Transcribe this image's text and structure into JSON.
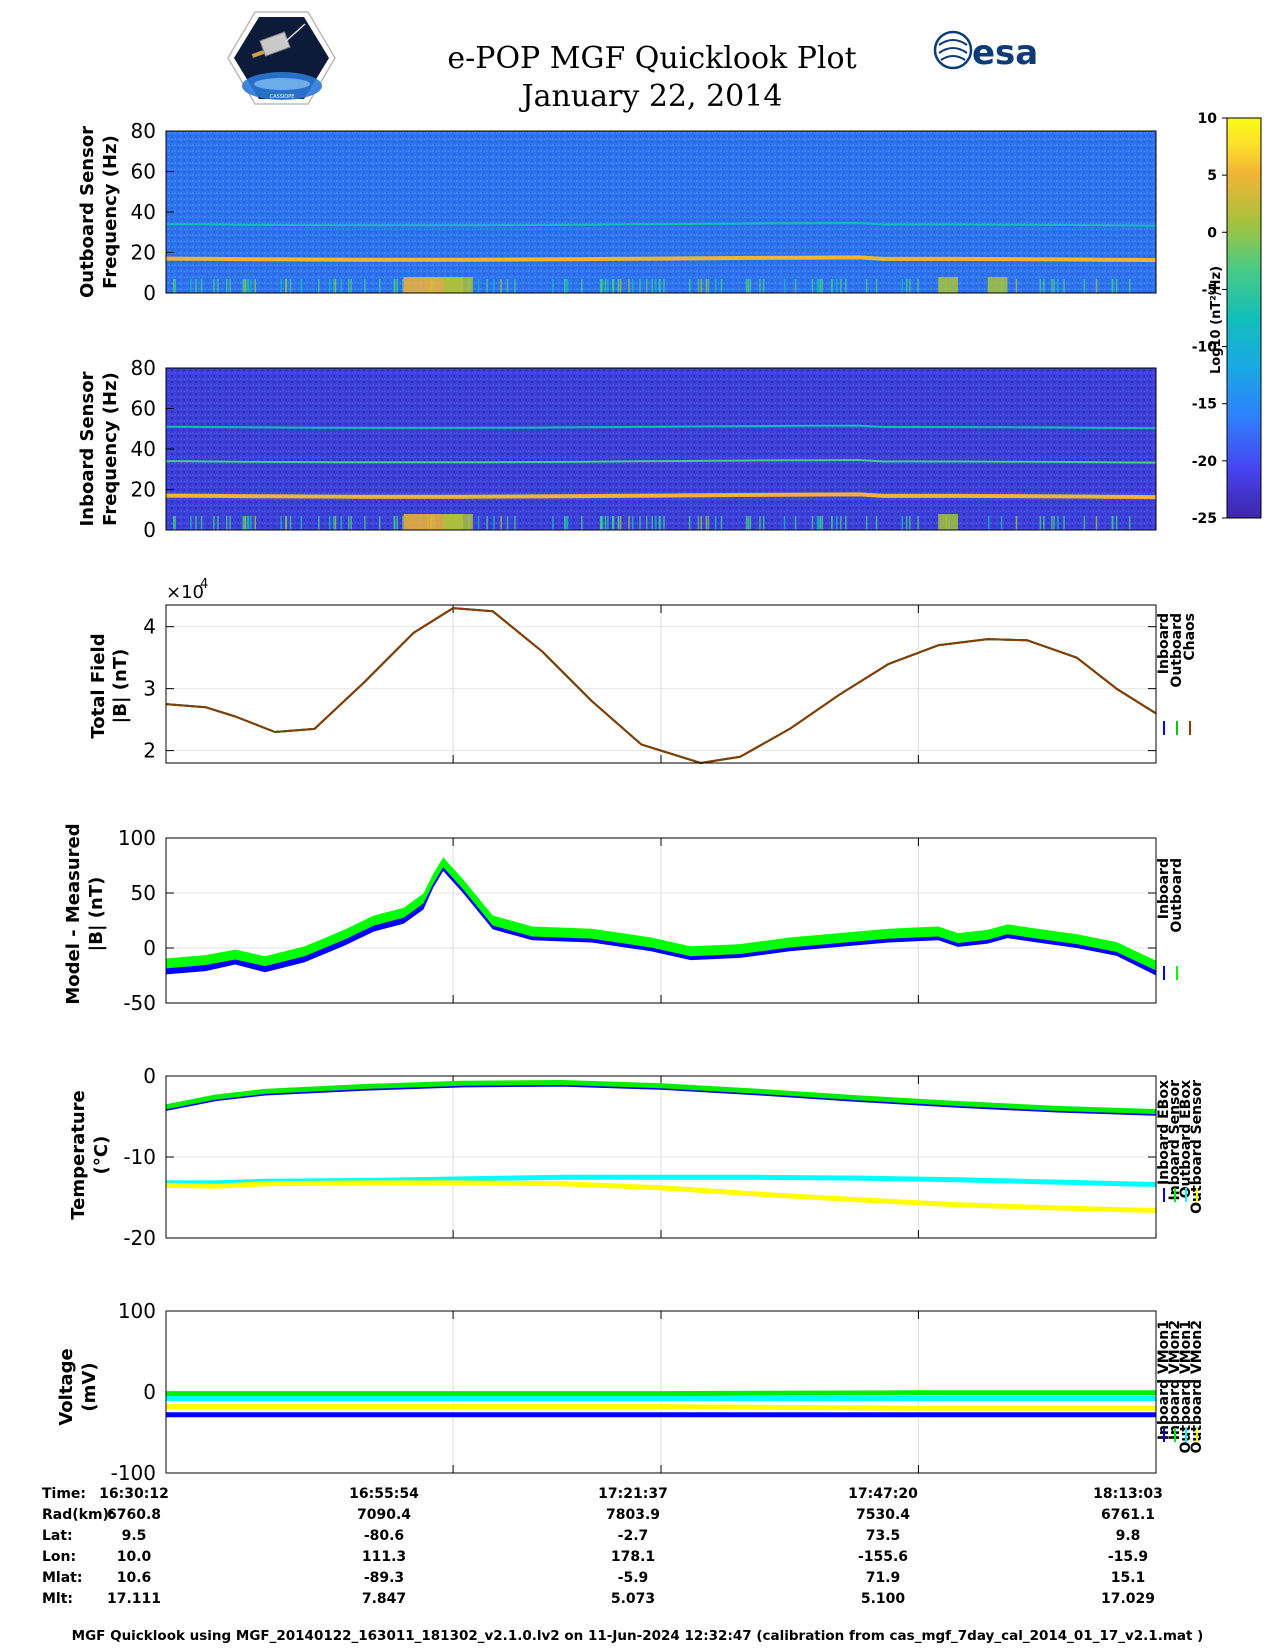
{
  "header": {
    "title": "e-POP MGF Quicklook Plot",
    "date": "January 22, 2014",
    "logo_left_text": "CASSIOPE",
    "logo_right_text": "esa"
  },
  "colorbar": {
    "label": "Log10 (nT²/Hz)",
    "ticks": [
      10,
      5,
      0,
      -5,
      -10,
      -15,
      -20,
      -25
    ],
    "range": [
      -25,
      10
    ],
    "colormap": [
      "#3e26a8",
      "#4743f0",
      "#2f7ffd",
      "#18a9e3",
      "#12bfb8",
      "#48cb85",
      "#a6c23c",
      "#f2b434",
      "#fde32a",
      "#f9fb15"
    ]
  },
  "chart_data": [
    {
      "type": "heatmap",
      "id": "outboard-spectrogram",
      "ylabel_line1": "Outboard Sensor",
      "ylabel_line2": "Frequency (Hz)",
      "ylim": [
        0,
        80
      ],
      "yticks": [
        0,
        20,
        40,
        60,
        80
      ],
      "background_level": -17,
      "spectral_lines_hz": [
        17,
        34
      ],
      "line_levels": [
        2,
        -8
      ],
      "bursts": [
        {
          "x": 0.24,
          "width": 0.06,
          "level": 3
        },
        {
          "x": 0.28,
          "width": 0.03,
          "level": 0
        },
        {
          "x": 0.78,
          "width": 0.02,
          "level": -2
        },
        {
          "x": 0.83,
          "width": 0.02,
          "level": -2
        }
      ]
    },
    {
      "type": "heatmap",
      "id": "inboard-spectrogram",
      "ylabel_line1": "Inboard Sensor",
      "ylabel_line2": "Frequency (Hz)",
      "ylim": [
        0,
        80
      ],
      "yticks": [
        0,
        20,
        40,
        60,
        80
      ],
      "background_level": -22,
      "spectral_lines_hz": [
        17,
        34,
        51
      ],
      "line_levels": [
        3,
        -7,
        -11
      ],
      "bursts": [
        {
          "x": 0.24,
          "width": 0.06,
          "level": 3
        },
        {
          "x": 0.28,
          "width": 0.03,
          "level": 0
        },
        {
          "x": 0.78,
          "width": 0.02,
          "level": -2
        }
      ]
    },
    {
      "type": "line",
      "id": "total-field",
      "ylabel_line1": "Total Field",
      "ylabel_line2": "|B| (nT)",
      "exponent_label": "×10",
      "exponent_power": "4",
      "ylim": [
        1.8,
        4.35
      ],
      "yticks": [
        2,
        3,
        4
      ],
      "legend": [
        "Inboard",
        "Outboard",
        "Chaos"
      ],
      "series": [
        {
          "name": "Inboard",
          "color": "#0000ff",
          "x": [
            0,
            0.04,
            0.07,
            0.11,
            0.15,
            0.2,
            0.25,
            0.29,
            0.33,
            0.38,
            0.43,
            0.48,
            0.54,
            0.58,
            0.63,
            0.68,
            0.73,
            0.78,
            0.83,
            0.87,
            0.92,
            0.96,
            1.0
          ],
          "y": [
            2.75,
            2.7,
            2.55,
            2.3,
            2.35,
            3.1,
            3.9,
            4.3,
            4.25,
            3.6,
            2.8,
            2.1,
            1.8,
            1.9,
            2.35,
            2.9,
            3.4,
            3.7,
            3.8,
            3.78,
            3.5,
            3.0,
            2.6
          ]
        },
        {
          "name": "Outboard",
          "color": "#00cc00",
          "x": [
            0,
            0.04,
            0.07,
            0.11,
            0.15,
            0.2,
            0.25,
            0.29,
            0.33,
            0.38,
            0.43,
            0.48,
            0.54,
            0.58,
            0.63,
            0.68,
            0.73,
            0.78,
            0.83,
            0.87,
            0.92,
            0.96,
            1.0
          ],
          "y": [
            2.75,
            2.7,
            2.55,
            2.3,
            2.35,
            3.1,
            3.9,
            4.3,
            4.25,
            3.6,
            2.8,
            2.1,
            1.8,
            1.9,
            2.35,
            2.9,
            3.4,
            3.7,
            3.8,
            3.78,
            3.5,
            3.0,
            2.6
          ]
        },
        {
          "name": "Chaos",
          "color": "#8b3a00",
          "x": [
            0,
            0.04,
            0.07,
            0.11,
            0.15,
            0.2,
            0.25,
            0.29,
            0.33,
            0.38,
            0.43,
            0.48,
            0.54,
            0.58,
            0.63,
            0.68,
            0.73,
            0.78,
            0.83,
            0.87,
            0.92,
            0.96,
            1.0
          ],
          "y": [
            2.75,
            2.7,
            2.55,
            2.3,
            2.35,
            3.1,
            3.9,
            4.3,
            4.25,
            3.6,
            2.8,
            2.1,
            1.8,
            1.9,
            2.35,
            2.9,
            3.4,
            3.7,
            3.8,
            3.78,
            3.5,
            3.0,
            2.6
          ]
        }
      ]
    },
    {
      "type": "area",
      "id": "model-minus-measured",
      "ylabel_line1": "Model - Measured",
      "ylabel_line2": "|B| (nT)",
      "ylim": [
        -50,
        100
      ],
      "yticks": [
        -50,
        0,
        50,
        100
      ],
      "legend": [
        "Inboard",
        "Outboard"
      ],
      "x": [
        0,
        0.04,
        0.07,
        0.1,
        0.14,
        0.18,
        0.21,
        0.24,
        0.26,
        0.27,
        0.28,
        0.3,
        0.33,
        0.37,
        0.43,
        0.49,
        0.53,
        0.58,
        0.63,
        0.68,
        0.73,
        0.78,
        0.8,
        0.83,
        0.85,
        0.88,
        0.92,
        0.96,
        1.0
      ],
      "series": [
        {
          "name": "Inboard",
          "color": "#0000ff",
          "y": [
            -19,
            -16,
            -10,
            -17,
            -8,
            7,
            20,
            27,
            40,
            60,
            75,
            55,
            22,
            12,
            10,
            2,
            -6,
            -4,
            2,
            6,
            10,
            12,
            6,
            9,
            14,
            10,
            5,
            -2,
            -20
          ],
          "band": 10
        },
        {
          "name": "Outboard",
          "color": "#00ff00",
          "y": [
            -14,
            -11,
            -6,
            -12,
            -3,
            12,
            25,
            32,
            45,
            63,
            78,
            58,
            25,
            15,
            13,
            5,
            -3,
            -1,
            5,
            9,
            13,
            15,
            9,
            12,
            17,
            13,
            8,
            1,
            -16
          ],
          "band": 9
        }
      ]
    },
    {
      "type": "line",
      "id": "temperature",
      "ylabel_line1": "Temperature",
      "ylabel_line2": "(°C)",
      "ylim": [
        -20,
        0
      ],
      "yticks": [
        -20,
        -10,
        0
      ],
      "legend": [
        "Inboard EBox",
        "Inboard Sensor",
        "Outboard EBox",
        "Outboard Sensor"
      ],
      "x": [
        0,
        0.05,
        0.1,
        0.2,
        0.3,
        0.4,
        0.5,
        0.6,
        0.7,
        0.8,
        0.9,
        1.0
      ],
      "series": [
        {
          "name": "Inboard EBox",
          "color": "#0000ff",
          "y": [
            -4,
            -2.8,
            -2.1,
            -1.5,
            -1.1,
            -1.0,
            -1.4,
            -2.1,
            -2.9,
            -3.6,
            -4.2,
            -4.6
          ]
        },
        {
          "name": "Inboard Sensor",
          "color": "#00ee00",
          "y": [
            -3.8,
            -2.6,
            -1.9,
            -1.3,
            -0.9,
            -0.8,
            -1.2,
            -1.9,
            -2.7,
            -3.4,
            -4.0,
            -4.4
          ]
        },
        {
          "name": "Outboard EBox",
          "color": "#00ffff",
          "y": [
            -13.2,
            -13.2,
            -13.0,
            -12.9,
            -12.7,
            -12.5,
            -12.5,
            -12.5,
            -12.6,
            -12.8,
            -13.1,
            -13.4
          ]
        },
        {
          "name": "Outboard Sensor",
          "color": "#ffff00",
          "y": [
            -13.5,
            -13.6,
            -13.3,
            -13.2,
            -13.2,
            -13.3,
            -13.8,
            -14.6,
            -15.3,
            -15.9,
            -16.3,
            -16.6
          ]
        }
      ]
    },
    {
      "type": "line",
      "id": "voltage",
      "ylabel_line1": "Voltage",
      "ylabel_line2": "(mV)",
      "ylim": [
        -100,
        100
      ],
      "yticks": [
        -100,
        0,
        100
      ],
      "legend": [
        "Inboard VMon1",
        "Inboard VMon2",
        "Outboard VMon1",
        "Outboard VMon2"
      ],
      "x": [
        0,
        0.25,
        0.5,
        0.75,
        1.0
      ],
      "series": [
        {
          "name": "Inboard VMon1",
          "color": "#0000ff",
          "y": [
            -28,
            -28,
            -28,
            -28,
            -28
          ]
        },
        {
          "name": "Inboard VMon2",
          "color": "#00ee00",
          "y": [
            -2,
            -2,
            -2,
            -1,
            -1
          ]
        },
        {
          "name": "Outboard VMon1",
          "color": "#00ffff",
          "y": [
            -8,
            -8,
            -8,
            -8,
            -8
          ]
        },
        {
          "name": "Outboard VMon2",
          "color": "#ffff00",
          "y": [
            -18,
            -18,
            -18,
            -20,
            -20
          ]
        }
      ]
    }
  ],
  "time_axis": {
    "rows": [
      {
        "label": "Time:",
        "values": [
          "16:30:12",
          "16:55:54",
          "17:21:37",
          "17:47:20",
          "18:13:03"
        ]
      },
      {
        "label": "Rad(km):",
        "values": [
          "6760.8",
          "7090.4",
          "7803.9",
          "7530.4",
          "6761.1"
        ]
      },
      {
        "label": "Lat:",
        "values": [
          "9.5",
          "-80.6",
          "-2.7",
          "73.5",
          "9.8"
        ]
      },
      {
        "label": "Lon:",
        "values": [
          "10.0",
          "111.3",
          "178.1",
          "-155.6",
          "-15.9"
        ]
      },
      {
        "label": "Mlat:",
        "values": [
          "10.6",
          "-89.3",
          "-5.9",
          "71.9",
          "15.1"
        ]
      },
      {
        "label": "Mlt:",
        "values": [
          "17.111",
          "7.847",
          "5.073",
          "5.100",
          "17.029"
        ]
      }
    ]
  },
  "footer": "MGF Quicklook using MGF_20140122_163011_181302_v2.1.0.lv2 on 11-Jun-2024 12:32:47 (calibration from cas_mgf_7day_cal_2014_01_17_v2.1.mat )"
}
